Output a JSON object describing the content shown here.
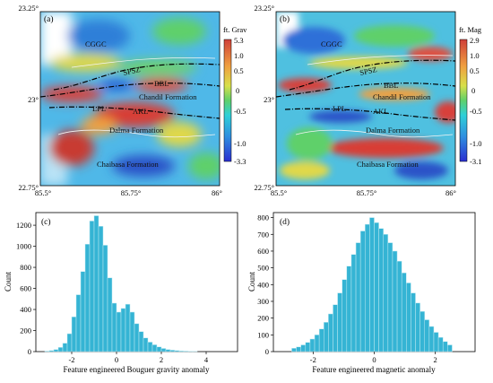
{
  "chart_data": [
    {
      "type": "heatmap",
      "panel": "(a)",
      "colorbar": {
        "label": "ft. Grav",
        "ticks": [
          "5.3",
          "1.0",
          "0.5",
          "0",
          "-0.5",
          "-1.0",
          "-3.3"
        ],
        "range": [
          -3.3,
          5.3
        ]
      },
      "x_ticks": [
        "85.5°",
        "85.75°",
        "86°"
      ],
      "y_ticks": [
        "23.25°",
        "23°",
        "22.75°"
      ],
      "annotations": [
        "CGGC",
        "SPSZ",
        "BBL",
        "Chandil Formation",
        "LPL",
        "AKL",
        "Dalma Formation",
        "Chaibasa Formation"
      ]
    },
    {
      "type": "heatmap",
      "panel": "(b)",
      "colorbar": {
        "label": "ft. Mag",
        "ticks": [
          "2.9",
          "1.0",
          "0.5",
          "0",
          "-0.5",
          "-1.0",
          "-3.1"
        ],
        "range": [
          -3.1,
          2.9
        ]
      },
      "x_ticks": [
        "85.5°",
        "85.75°",
        "86°"
      ],
      "y_ticks": [
        "23.25°",
        "23°",
        "22.75°"
      ],
      "annotations": [
        "CGGC",
        "SPSZ",
        "BBL",
        "Chandil Formation",
        "LPL",
        "AKL",
        "Dalma Formation",
        "Chaibasa Formation"
      ]
    },
    {
      "type": "bar",
      "panel": "(c)",
      "xlabel": "Feature engineered Bouguer gravity anomaly",
      "ylabel": "Count",
      "x_ticks": [
        "-2",
        "0",
        "2",
        "4"
      ],
      "y_ticks": [
        "0",
        "200",
        "400",
        "600",
        "800",
        "1000",
        "1200"
      ],
      "xlim": [
        -3.6,
        5.4
      ],
      "ylim": [
        0,
        1320
      ],
      "bin_start": -3.2,
      "bin_width": 0.2,
      "values": [
        5,
        10,
        20,
        40,
        80,
        170,
        330,
        540,
        760,
        1020,
        1240,
        1290,
        1190,
        1010,
        700,
        460,
        375,
        410,
        450,
        375,
        265,
        190,
        130,
        90,
        65,
        45,
        30,
        20,
        14,
        10,
        7,
        5,
        3,
        2
      ]
    },
    {
      "type": "bar",
      "panel": "(d)",
      "xlabel": "Feature engineered magnetic anomaly",
      "ylabel": "Count",
      "x_ticks": [
        "-2",
        "0",
        "2"
      ],
      "y_ticks": [
        "0",
        "100",
        "200",
        "300",
        "400",
        "500",
        "600",
        "700",
        "800"
      ],
      "xlim": [
        -3.3,
        3.3
      ],
      "ylim": [
        0,
        830
      ],
      "bin_start": -2.7,
      "bin_width": 0.15,
      "values": [
        20,
        28,
        40,
        55,
        75,
        100,
        135,
        175,
        225,
        280,
        350,
        430,
        510,
        580,
        650,
        720,
        760,
        800,
        770,
        735,
        700,
        650,
        600,
        540,
        470,
        410,
        350,
        290,
        240,
        190,
        150,
        115,
        85,
        60,
        40
      ]
    }
  ]
}
